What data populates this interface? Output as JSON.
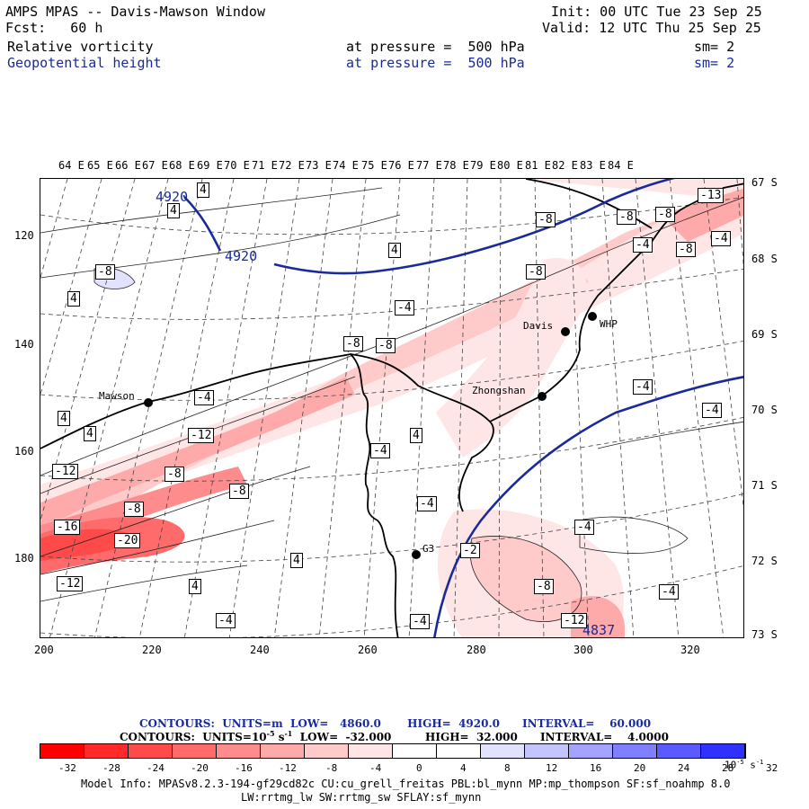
{
  "header": {
    "title": "AMPS MPAS -- Davis-Mawson Window",
    "forecast": "Fcst:   60 h",
    "init": "Init: 00 UTC Tue 23 Sep 25",
    "valid": "Valid: 12 UTC Thu 25 Sep 25",
    "field1": {
      "name": "Relative vorticity",
      "level": "at pressure =  500 hPa",
      "smooth": "sm= 2"
    },
    "field2": {
      "name": "Geopotential height",
      "level": "at pressure =  500 hPa",
      "smooth": "sm= 2"
    }
  },
  "map": {
    "y_ticks": [
      "120",
      "140",
      "160",
      "180"
    ],
    "x_ticks": [
      "200",
      "220",
      "240",
      "260",
      "280",
      "300",
      "320"
    ],
    "lon_labels": [
      "64 E",
      "65 E",
      "66 E",
      "67 E",
      "68 E",
      "69 E",
      "70 E",
      "71 E",
      "72 E",
      "73 E",
      "74 E",
      "75 E",
      "76 E",
      "77 E",
      "78 E",
      "79 E",
      "80 E",
      "81 E",
      "82 E",
      "83 E",
      "84 E"
    ],
    "lat_labels": [
      "67 S",
      "68 S",
      "69 S",
      "70 S",
      "71 S",
      "72 S",
      "73 S"
    ],
    "stations": [
      "Mawson",
      "Davis",
      "WHP",
      "Zhongshan",
      "G3"
    ],
    "height_labels": [
      "4920",
      "4920",
      "4837"
    ],
    "vort_labels": [
      "4",
      "-8",
      "-8",
      "-13",
      "-4",
      "-8",
      "4",
      "-8",
      "-8",
      "4",
      "-4",
      "-8",
      "-8",
      "-4",
      "4",
      "-4",
      "4",
      "-4",
      "-4",
      "4",
      "-12",
      "-4",
      "-12",
      "-8",
      "-8",
      "-16",
      "-8",
      "-20",
      "-4",
      "-2",
      "4",
      "-8",
      "-12",
      "-4",
      "-4",
      "4",
      "-12",
      "-4",
      "4",
      "-4",
      "-8"
    ]
  },
  "contour_info": {
    "line1": "CONTOURS:  UNITS=m  LOW=   4860.0       HIGH=  4920.0      INTERVAL=    60.000",
    "line2_a": "CONTOURS:  UNITS=10",
    "line2_b": "-5",
    "line2_c": " s",
    "line2_d": "-1",
    "line2_e": "  LOW=  -32.000         HIGH=  32.000      INTERVAL=    4.0000"
  },
  "colorbar": {
    "colors": [
      "#ff0000",
      "#ff2a2a",
      "#ff4a4a",
      "#ff6a6a",
      "#ff8c8c",
      "#ffaaaa",
      "#ffcaca",
      "#ffe6e6",
      "#ffffff",
      "#ffffff",
      "#e2e2ff",
      "#c4c4ff",
      "#a4a4ff",
      "#8080ff",
      "#5a5aff",
      "#3030ff",
      "#0000ff"
    ],
    "labels": [
      "-32",
      "-28",
      "-24",
      "-20",
      "-16",
      "-12",
      "-8",
      "-4",
      "0",
      "4",
      "8",
      "12",
      "16",
      "20",
      "24",
      "28",
      "32"
    ],
    "unit_a": "10",
    "unit_b": "-5",
    "unit_c": " s",
    "unit_d": "-1"
  },
  "model_info": {
    "line1": "Model Info: MPASv8.2.3-194-gf29cd82c CU:cu_grell_freitas PBL:bl_mynn MP:mp_thompson SF:sf_noahmp 8.0",
    "line2": "LW:rrtmg_lw SW:rrtmg_sw SFLAY:sf_mynn"
  }
}
